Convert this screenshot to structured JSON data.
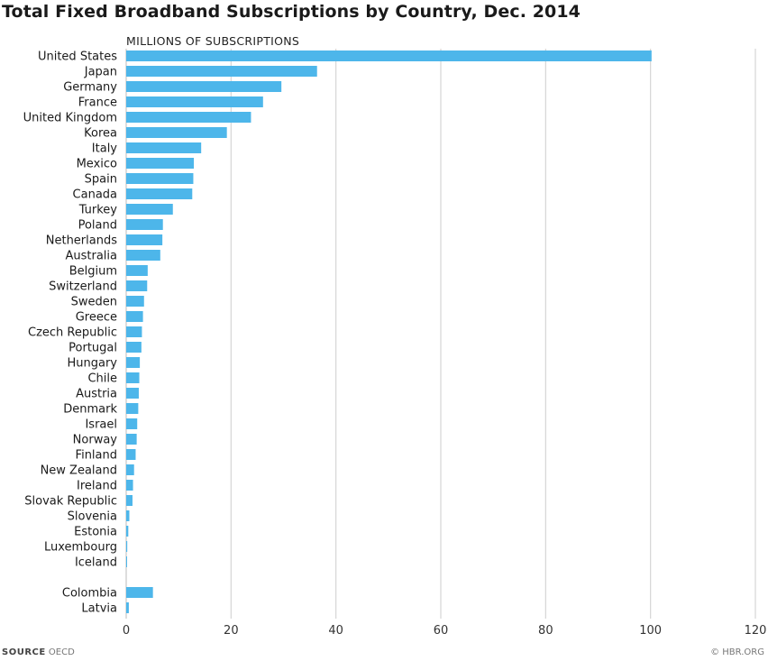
{
  "title": "Total Fixed Broadband Subscriptions by Country, Dec. 2014",
  "footer": {
    "source_label": "SOURCE",
    "source_value": "OECD",
    "credit": "© HBR.ORG"
  },
  "chart_data": {
    "type": "bar",
    "orientation": "horizontal",
    "unit_label": "MILLIONS OF SUBSCRIPTIONS",
    "xlim": [
      0,
      120
    ],
    "ticks": [
      0,
      20,
      40,
      60,
      80,
      100,
      120
    ],
    "grid": true,
    "bar_color": "#4db6ea",
    "groups": [
      {
        "categories": [
          "United States",
          "Japan",
          "Germany",
          "France",
          "United Kingdom",
          "Korea",
          "Italy",
          "Mexico",
          "Spain",
          "Canada",
          "Turkey",
          "Poland",
          "Netherlands",
          "Australia",
          "Belgium",
          "Switzerland",
          "Sweden",
          "Greece",
          "Czech Republic",
          "Portugal",
          "Hungary",
          "Chile",
          "Austria",
          "Denmark",
          "Israel",
          "Norway",
          "Finland",
          "New Zealand",
          "Ireland",
          "Slovak Republic",
          "Slovenia",
          "Estonia",
          "Luxembourg",
          "Iceland"
        ],
        "values": [
          100.2,
          36.4,
          29.6,
          26.1,
          23.8,
          19.2,
          14.3,
          12.9,
          12.8,
          12.6,
          8.9,
          7.0,
          6.9,
          6.5,
          4.1,
          4.0,
          3.4,
          3.2,
          3.0,
          2.9,
          2.6,
          2.5,
          2.4,
          2.3,
          2.1,
          2.0,
          1.8,
          1.5,
          1.3,
          1.2,
          0.6,
          0.4,
          0.2,
          0.1
        ]
      },
      {
        "categories": [
          "Colombia",
          "Latvia"
        ],
        "values": [
          5.1,
          0.5
        ]
      }
    ]
  }
}
